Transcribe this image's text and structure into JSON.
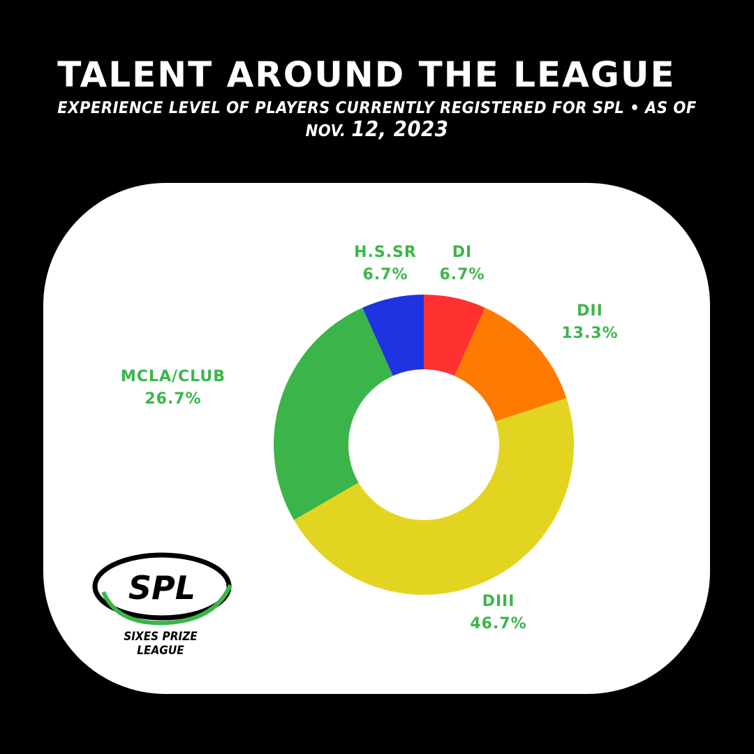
{
  "header": {
    "title": "TALENT AROUND THE LEAGUE",
    "subtitle_prefix": "EXPERIENCE LEVEL OF PLAYERS CURRENTLY REGISTERED FOR SPL • AS OF NOV.",
    "subtitle_date": "12, 2023"
  },
  "logo": {
    "mark_text": "SPL",
    "caption": "SIXES PRIZE LEAGUE",
    "accent_color": "#3bb54a"
  },
  "chart_data": {
    "type": "pie",
    "variant": "donut",
    "start_angle_deg": 0,
    "direction": "clockwise",
    "label_color": "#3bb54a",
    "slices": [
      {
        "label": "DI",
        "value": 6.7,
        "display": "6.7%",
        "color": "#ff3131"
      },
      {
        "label": "DII",
        "value": 13.3,
        "display": "13.3%",
        "color": "#ff7a00"
      },
      {
        "label": "DIII",
        "value": 46.7,
        "display": "46.7%",
        "color": "#e4d422"
      },
      {
        "label": "MCLA/CLUB",
        "value": 26.7,
        "display": "26.7%",
        "color": "#3bb54a"
      },
      {
        "label": "H.S.SR",
        "value": 6.7,
        "display": "6.7%",
        "color": "#1f33e0"
      }
    ]
  }
}
